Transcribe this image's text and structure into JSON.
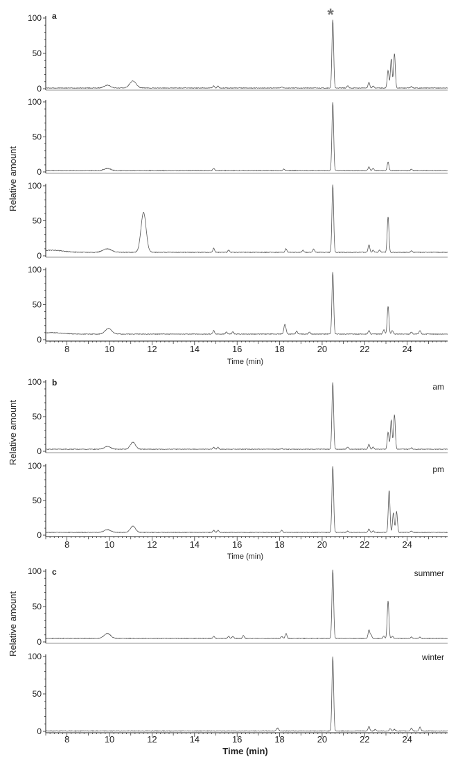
{
  "figure": {
    "asterisk": "*",
    "colors": {
      "trace": "#555555",
      "axis": "#222222",
      "text": "#222222",
      "asterisk": "#777777"
    }
  },
  "panels": [
    {
      "letter": "a",
      "ylabel": "Relative  amount",
      "xlabel": "Time (min)"
    },
    {
      "letter": "b",
      "ylabel": "Relative  amount",
      "xlabel": "Time (min)"
    },
    {
      "letter": "c",
      "ylabel": "Relative  amount",
      "xlabel": "Time (min)"
    }
  ],
  "chart_data": [
    {
      "type": "line",
      "panel": "a",
      "xlabel": "Time (min)",
      "ylabel": "Relative  amount",
      "xlim": [
        7,
        25.9
      ],
      "ylim": [
        0,
        100
      ],
      "xticks": [
        8,
        10,
        12,
        14,
        16,
        18,
        20,
        22,
        24
      ],
      "yticks": [
        0,
        50,
        100
      ],
      "annotation": "*",
      "annotation_x": 20.5,
      "series": [
        {
          "baseline": 1,
          "peaks": [
            [
              9.9,
              4,
              0.15
            ],
            [
              11.1,
              10,
              0.15
            ],
            [
              14.9,
              3,
              0.04
            ],
            [
              15.1,
              3,
              0.04
            ],
            [
              18.1,
              1.5,
              0.04
            ],
            [
              20.5,
              97,
              0.04
            ],
            [
              21.2,
              3,
              0.04
            ],
            [
              22.2,
              8,
              0.04
            ],
            [
              22.4,
              3,
              0.04
            ],
            [
              23.1,
              25,
              0.04
            ],
            [
              23.25,
              41,
              0.04
            ],
            [
              23.4,
              49,
              0.04
            ],
            [
              24.2,
              2,
              0.04
            ]
          ]
        },
        {
          "baseline": 2,
          "peaks": [
            [
              9.9,
              3,
              0.15
            ],
            [
              14.9,
              3,
              0.04
            ],
            [
              18.2,
              2,
              0.04
            ],
            [
              20.5,
              98,
              0.04
            ],
            [
              22.2,
              5,
              0.04
            ],
            [
              22.4,
              3,
              0.04
            ],
            [
              23.1,
              12,
              0.04
            ],
            [
              24.2,
              2,
              0.04
            ]
          ]
        },
        {
          "baseline": 5,
          "peaks": [
            [
              7.3,
              3,
              0.5
            ],
            [
              9.9,
              5,
              0.2
            ],
            [
              11.6,
              57,
              0.12
            ],
            [
              14.9,
              6,
              0.04
            ],
            [
              15.6,
              3,
              0.04
            ],
            [
              18.3,
              5,
              0.04
            ],
            [
              19.1,
              3,
              0.04
            ],
            [
              19.6,
              5,
              0.04
            ],
            [
              20.5,
              97,
              0.04
            ],
            [
              22.2,
              11,
              0.04
            ],
            [
              22.4,
              3,
              0.04
            ],
            [
              22.7,
              3,
              0.04
            ],
            [
              23.1,
              51,
              0.04
            ],
            [
              24.2,
              2,
              0.04
            ]
          ]
        },
        {
          "baseline": 8,
          "peaks": [
            [
              7.3,
              2,
              0.5
            ],
            [
              9.95,
              8,
              0.15
            ],
            [
              14.9,
              5,
              0.04
            ],
            [
              15.5,
              3,
              0.04
            ],
            [
              15.8,
              3,
              0.04
            ],
            [
              18.25,
              14,
              0.05
            ],
            [
              18.8,
              4,
              0.04
            ],
            [
              19.4,
              3,
              0.04
            ],
            [
              20.5,
              89,
              0.04
            ],
            [
              22.2,
              5,
              0.04
            ],
            [
              22.9,
              6,
              0.04
            ],
            [
              23.1,
              40,
              0.04
            ],
            [
              23.3,
              5,
              0.04
            ],
            [
              24.2,
              3,
              0.04
            ],
            [
              24.6,
              5,
              0.04
            ]
          ]
        }
      ]
    },
    {
      "type": "line",
      "panel": "b",
      "xlabel": "Time (min)",
      "ylabel": "Relative  amount",
      "xlim": [
        7,
        25.9
      ],
      "ylim": [
        0,
        100
      ],
      "xticks": [
        8,
        10,
        12,
        14,
        16,
        18,
        20,
        22,
        24
      ],
      "yticks": [
        0,
        50,
        100
      ],
      "series": [
        {
          "name": "am",
          "baseline": 3,
          "peaks": [
            [
              9.9,
              4,
              0.15
            ],
            [
              11.1,
              10,
              0.12
            ],
            [
              14.9,
              3,
              0.04
            ],
            [
              15.1,
              3,
              0.04
            ],
            [
              18.1,
              1,
              0.04
            ],
            [
              20.5,
              97,
              0.04
            ],
            [
              21.2,
              3,
              0.04
            ],
            [
              22.2,
              7,
              0.04
            ],
            [
              22.4,
              3,
              0.04
            ],
            [
              23.1,
              25,
              0.04
            ],
            [
              23.25,
              42,
              0.04
            ],
            [
              23.4,
              50,
              0.04
            ],
            [
              24.2,
              2,
              0.04
            ]
          ]
        },
        {
          "name": "pm",
          "baseline": 4,
          "peaks": [
            [
              9.9,
              4,
              0.15
            ],
            [
              11.1,
              9,
              0.12
            ],
            [
              14.9,
              3,
              0.04
            ],
            [
              15.1,
              3,
              0.04
            ],
            [
              18.1,
              3,
              0.04
            ],
            [
              20.5,
              96,
              0.04
            ],
            [
              21.2,
              2,
              0.04
            ],
            [
              22.2,
              5,
              0.04
            ],
            [
              22.4,
              2,
              0.04
            ],
            [
              23.15,
              61,
              0.04
            ],
            [
              23.35,
              28,
              0.04
            ],
            [
              23.5,
              30,
              0.04
            ],
            [
              24.2,
              2,
              0.04
            ]
          ]
        }
      ]
    },
    {
      "type": "line",
      "panel": "c",
      "xlabel": "Time (min)",
      "ylabel": "Relative  amount",
      "xlim": [
        7,
        25.9
      ],
      "ylim": [
        0,
        100
      ],
      "xticks": [
        8,
        10,
        12,
        14,
        16,
        18,
        20,
        22,
        24
      ],
      "yticks": [
        0,
        50,
        100
      ],
      "series": [
        {
          "name": "summer",
          "baseline": 5,
          "peaks": [
            [
              9.9,
              7,
              0.15
            ],
            [
              14.9,
              3,
              0.04
            ],
            [
              15.6,
              3,
              0.04
            ],
            [
              15.8,
              3,
              0.04
            ],
            [
              16.3,
              4,
              0.04
            ],
            [
              18.1,
              3,
              0.04
            ],
            [
              18.3,
              7,
              0.04
            ],
            [
              20.5,
              97,
              0.04
            ],
            [
              22.2,
              12,
              0.04
            ],
            [
              22.3,
              5,
              0.04
            ],
            [
              22.9,
              3,
              0.04
            ],
            [
              23.1,
              53,
              0.04
            ],
            [
              23.3,
              3,
              0.04
            ],
            [
              24.2,
              2,
              0.04
            ],
            [
              24.6,
              2,
              0.04
            ]
          ]
        },
        {
          "name": "winter",
          "baseline": 0.5,
          "peaks": [
            [
              17.9,
              4,
              0.05
            ],
            [
              20.5,
              99,
              0.04
            ],
            [
              22.2,
              6,
              0.04
            ],
            [
              22.5,
              2,
              0.04
            ],
            [
              23.2,
              3,
              0.04
            ],
            [
              23.4,
              2,
              0.04
            ],
            [
              24.2,
              4,
              0.04
            ],
            [
              24.6,
              5,
              0.04
            ]
          ]
        }
      ]
    }
  ]
}
